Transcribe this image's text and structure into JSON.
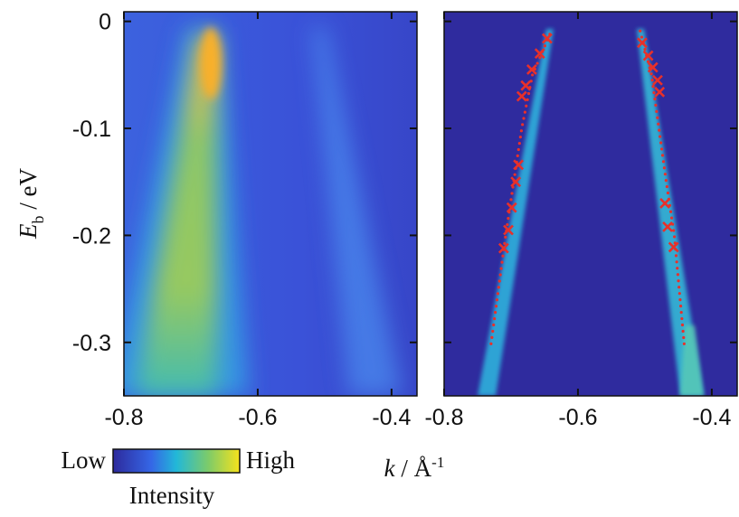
{
  "chart_data": [
    {
      "type": "heatmap",
      "xlim": [
        -0.8,
        -0.362
      ],
      "ylim": [
        -0.35,
        0.009
      ],
      "xticks": [
        -0.8,
        -0.6,
        -0.4
      ],
      "yticks": [
        0,
        -0.1,
        -0.2,
        -0.3
      ],
      "y_label": {
        "symbol": "E",
        "subscript": "b",
        "unit": " / eV"
      },
      "colorbar": {
        "low": "Low",
        "high": "High",
        "label": "Intensity"
      }
    },
    {
      "type": "scatter",
      "xlim": [
        -0.8,
        -0.362
      ],
      "ylim": [
        -0.35,
        0.009
      ],
      "xticks": [
        -0.8,
        -0.6,
        -0.4
      ],
      "yticks": [
        0,
        -0.1,
        -0.2,
        -0.3
      ],
      "ytick_labels": false,
      "x_label": {
        "symbol": "k",
        "unit": " / Å",
        "superscript": "-1"
      },
      "series": [
        {
          "color": "#e8302a",
          "marker": "x",
          "x": [
            -0.646,
            -0.657,
            -0.669,
            -0.678,
            -0.684,
            -0.689,
            -0.693,
            -0.699,
            -0.704,
            -0.711
          ],
          "values": [
            -0.016,
            -0.03,
            -0.045,
            -0.06,
            -0.07,
            -0.134,
            -0.15,
            -0.174,
            -0.195,
            -0.212
          ]
        },
        {
          "color": "#e8302a",
          "marker": "x",
          "x": [
            -0.504,
            -0.495,
            -0.488,
            -0.481,
            -0.478,
            -0.47,
            -0.466,
            -0.457
          ],
          "values": [
            -0.02,
            -0.032,
            -0.043,
            -0.055,
            -0.066,
            -0.17,
            -0.192,
            -0.211
          ]
        },
        {
          "color": "#e8302a",
          "marker": "dots",
          "x": [
            -0.642,
            -0.668,
            -0.684,
            -0.696,
            -0.708,
            -0.73
          ],
          "values": [
            -0.012,
            -0.05,
            -0.1,
            -0.15,
            -0.2,
            -0.302
          ]
        },
        {
          "color": "#e8302a",
          "marker": "dots",
          "x": [
            -0.507,
            -0.49,
            -0.479,
            -0.468,
            -0.456,
            -0.441
          ],
          "values": [
            -0.009,
            -0.05,
            -0.1,
            -0.15,
            -0.2,
            -0.303
          ]
        }
      ]
    }
  ]
}
